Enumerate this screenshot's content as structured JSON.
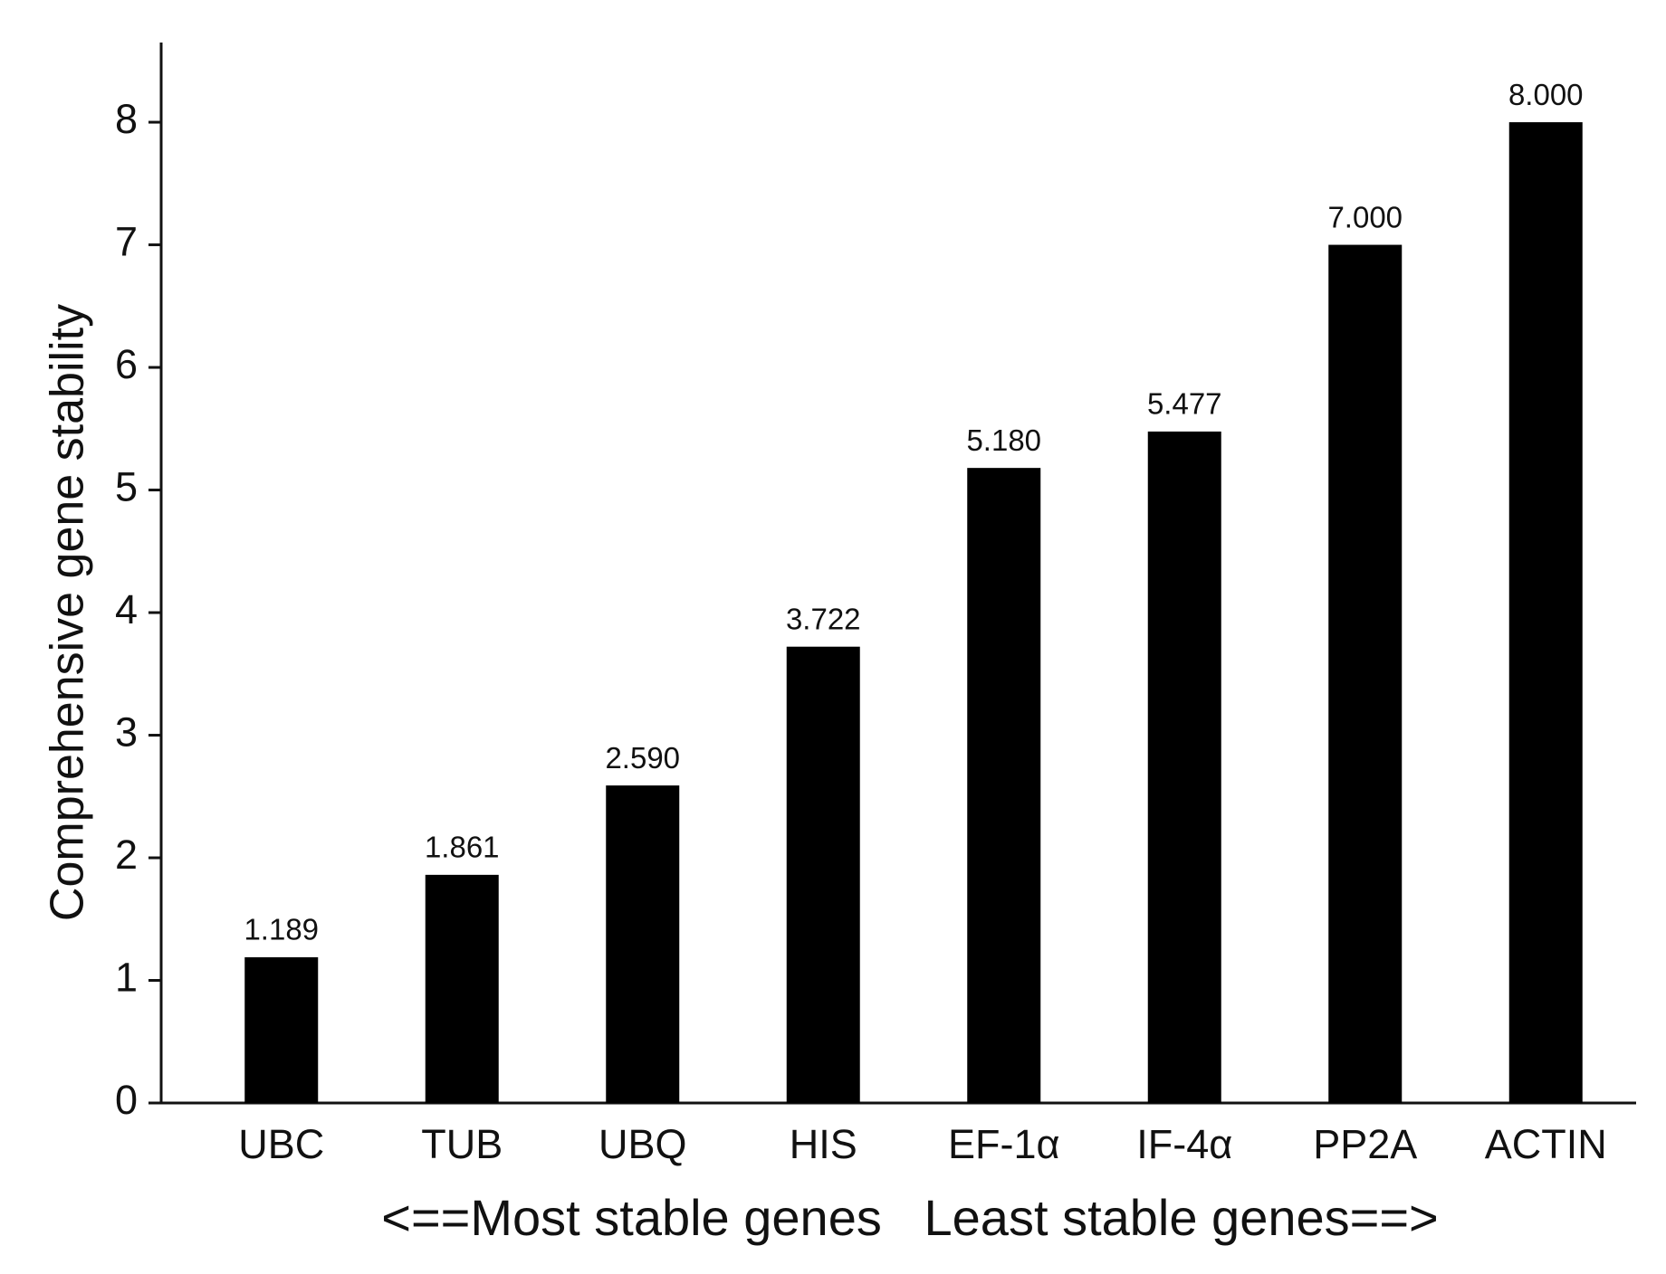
{
  "chart_data": {
    "type": "bar",
    "y_label": "Comprehensive gene stability",
    "x_label": "<==Most stable genes   Least stable genes==>",
    "categories": [
      "UBC",
      "TUB",
      "UBQ",
      "HIS",
      "EF-1α",
      "IF-4α",
      "PP2A",
      "ACTIN"
    ],
    "values": [
      1.189,
      1.861,
      2.59,
      3.722,
      5.18,
      5.477,
      7,
      8
    ],
    "value_labels": [
      "1.189",
      "1.861",
      "2.590",
      "3.722",
      "5.180",
      "5.477",
      "7.000",
      "8.000"
    ],
    "color": "#000000",
    "ylim": [
      0,
      8.65
    ],
    "yticks": [
      0,
      1,
      2,
      3,
      4,
      5,
      6,
      7,
      8
    ],
    "grid": false
  }
}
